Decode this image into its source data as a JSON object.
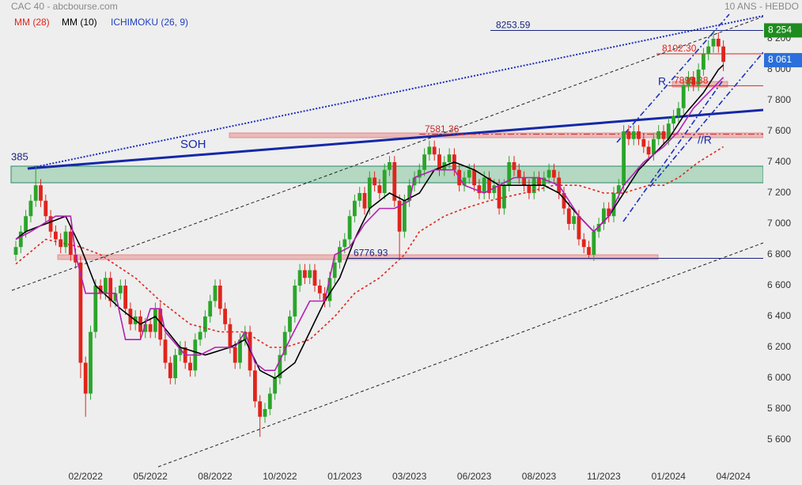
{
  "chart_data": {
    "type": "candlestick",
    "title": "CAC 40 - abcbourse.com",
    "subtitle": "10 ANS - HEBDO",
    "categories": [
      null,
      null,
      null,
      null,
      null,
      null,
      null,
      null,
      null,
      null,
      null,
      null,
      null,
      null,
      "02/2022",
      null,
      null,
      null,
      null,
      null,
      null,
      null,
      null,
      null,
      null,
      null,
      null,
      "05/2022",
      null,
      null,
      null,
      null,
      null,
      null,
      null,
      null,
      null,
      null,
      null,
      null,
      "08/2022",
      null,
      null,
      null,
      null,
      null,
      null,
      null,
      null,
      null,
      null,
      null,
      null,
      "10/2022",
      null,
      null,
      null,
      null,
      null,
      null,
      null,
      null,
      null,
      null,
      null,
      null,
      "01/2023",
      null,
      null,
      null,
      null,
      null,
      null,
      null,
      null,
      null,
      null,
      null,
      null,
      "03/2023",
      null,
      null,
      null,
      null,
      null,
      null,
      null,
      null,
      null,
      null,
      null,
      null,
      "06/2023",
      null,
      null,
      null,
      null,
      null,
      null,
      null,
      null,
      null,
      null,
      null,
      null,
      "08/2023",
      null,
      null,
      null,
      null,
      null,
      null,
      null,
      null,
      null,
      null,
      null,
      null,
      "11/2023",
      null,
      null,
      null,
      null,
      null,
      null,
      null,
      null,
      null,
      null,
      null,
      null,
      "01/2024",
      null,
      null,
      null,
      null,
      null,
      null,
      null,
      null,
      null,
      null,
      null,
      null,
      "04/2024"
    ],
    "open": [
      6800,
      6850,
      6950,
      7050,
      7150,
      7250,
      7150,
      7050,
      6950,
      6900,
      6850,
      6950,
      6800,
      6750,
      6100,
      5900,
      6300,
      6600,
      6550,
      6650,
      6500,
      6550,
      6600,
      6450,
      6350,
      6400,
      6300,
      6350,
      6300,
      6450,
      6250,
      6100,
      6000,
      6150,
      6200,
      6100,
      6050,
      6250,
      6300,
      6400,
      6500,
      6600,
      6450,
      6350,
      6200,
      6100,
      6250,
      6300,
      6050,
      5850,
      5750,
      5800,
      5900,
      6000,
      6150,
      6300,
      6400,
      6600,
      6700,
      6650,
      6700,
      6600,
      6550,
      6500,
      6650,
      6750,
      6850,
      6900,
      7050,
      7150,
      7200,
      7100,
      7300,
      7250,
      7200,
      7350,
      7400,
      7150,
      6950,
      7150,
      7250,
      7300,
      7350,
      7450,
      7500,
      7450,
      7350,
      7400,
      7450,
      7350,
      7250,
      7300,
      7350,
      7250,
      7200,
      7300,
      7200,
      7250,
      7100,
      7250,
      7400,
      7350,
      7300,
      7250,
      7200,
      7300,
      7250,
      7300,
      7350,
      7300,
      7200,
      7100,
      7000,
      7050,
      6900,
      6850,
      6800,
      6950,
      7000,
      7100,
      7050,
      7200,
      7250,
      7600,
      7550,
      7600,
      7550,
      7500,
      7450,
      7550,
      7600,
      7550,
      7650,
      7700,
      7750,
      7900,
      7950,
      7900,
      8000,
      8100,
      8150,
      8200,
      8150,
      null,
      null
    ],
    "high": [
      6890,
      6990,
      7090,
      7190,
      7380,
      7290,
      7190,
      7090,
      6990,
      6940,
      6990,
      6990,
      6840,
      6790,
      6140,
      6340,
      6640,
      6640,
      6690,
      6690,
      6590,
      6640,
      6640,
      6490,
      6440,
      6440,
      6390,
      6390,
      6490,
      6490,
      6290,
      6140,
      6190,
      6240,
      6240,
      6140,
      6290,
      6340,
      6440,
      6540,
      6640,
      6640,
      6490,
      6390,
      6240,
      6290,
      6340,
      6340,
      6090,
      5890,
      5840,
      5940,
      6040,
      6190,
      6340,
      6440,
      6640,
      6740,
      6740,
      6740,
      6740,
      6640,
      6590,
      6690,
      6790,
      6890,
      6940,
      7090,
      7190,
      7240,
      7240,
      7340,
      7340,
      7290,
      7390,
      7440,
      7440,
      7190,
      7190,
      7290,
      7340,
      7390,
      7490,
      7540,
      7540,
      7490,
      7440,
      7490,
      7490,
      7390,
      7340,
      7390,
      7390,
      7290,
      7340,
      7340,
      7290,
      7290,
      7290,
      7440,
      7440,
      7390,
      7340,
      7290,
      7340,
      7340,
      7340,
      7390,
      7390,
      7340,
      7240,
      7140,
      7090,
      7090,
      6940,
      6890,
      6990,
      7040,
      7140,
      7140,
      7240,
      7290,
      7640,
      7640,
      7640,
      7640,
      7590,
      7540,
      7590,
      7640,
      7640,
      7690,
      7740,
      7790,
      7940,
      7990,
      7990,
      8040,
      8140,
      8190,
      8254,
      8240,
      8190,
      null,
      null
    ],
    "low": [
      6760,
      6810,
      6910,
      7010,
      7110,
      7110,
      7010,
      6910,
      6860,
      6810,
      6810,
      6760,
      6710,
      6000,
      5750,
      5860,
      6260,
      6510,
      6510,
      6460,
      6460,
      6510,
      6410,
      6310,
      6310,
      6260,
      6260,
      6260,
      6260,
      6210,
      6060,
      5960,
      5960,
      6110,
      6060,
      6010,
      6010,
      6210,
      6260,
      6360,
      6460,
      6410,
      6310,
      6160,
      6060,
      6060,
      6210,
      6010,
      5810,
      5620,
      5710,
      5760,
      5860,
      5960,
      6110,
      6260,
      6360,
      6560,
      6610,
      6610,
      6560,
      6510,
      6460,
      6460,
      6610,
      6710,
      6810,
      6860,
      7010,
      7110,
      7060,
      7060,
      7210,
      7160,
      7160,
      7310,
      7110,
      6780,
      6910,
      7110,
      7210,
      7260,
      7310,
      7410,
      7410,
      7310,
      7310,
      7360,
      7310,
      7210,
      7210,
      7260,
      7210,
      7160,
      7160,
      7160,
      7160,
      7060,
      7060,
      7210,
      7310,
      7260,
      7210,
      7160,
      7160,
      7210,
      7210,
      7260,
      7260,
      7160,
      7060,
      6960,
      6960,
      6860,
      6810,
      6780,
      6760,
      6910,
      6960,
      7010,
      7010,
      7160,
      7210,
      7510,
      7510,
      7510,
      7460,
      7410,
      7410,
      7510,
      7510,
      7510,
      7610,
      7660,
      7710,
      7860,
      7860,
      7860,
      7960,
      8060,
      8110,
      8110,
      7990,
      null,
      null
    ],
    "close": [
      6850,
      6950,
      7050,
      7150,
      7250,
      7150,
      7050,
      6950,
      6900,
      6850,
      6950,
      6800,
      6750,
      6100,
      5900,
      6300,
      6600,
      6550,
      6650,
      6500,
      6550,
      6600,
      6450,
      6350,
      6400,
      6300,
      6350,
      6300,
      6450,
      6250,
      6100,
      6000,
      6150,
      6200,
      6100,
      6050,
      6250,
      6300,
      6400,
      6500,
      6600,
      6450,
      6350,
      6200,
      6100,
      6250,
      6300,
      6050,
      5850,
      5750,
      5800,
      5900,
      6000,
      6150,
      6300,
      6400,
      6600,
      6700,
      6650,
      6700,
      6600,
      6550,
      6500,
      6650,
      6750,
      6850,
      6900,
      7050,
      7150,
      7200,
      7100,
      7300,
      7250,
      7200,
      7350,
      7400,
      7150,
      6950,
      7150,
      7250,
      7300,
      7350,
      7450,
      7500,
      7450,
      7350,
      7400,
      7450,
      7350,
      7250,
      7300,
      7350,
      7250,
      7200,
      7300,
      7200,
      7250,
      7100,
      7250,
      7400,
      7350,
      7300,
      7250,
      7200,
      7300,
      7250,
      7300,
      7350,
      7300,
      7200,
      7100,
      7000,
      7050,
      6900,
      6850,
      6800,
      6950,
      7000,
      7100,
      7050,
      7200,
      7250,
      7600,
      7550,
      7600,
      7550,
      7500,
      7450,
      7550,
      7600,
      7550,
      7650,
      7700,
      7750,
      7900,
      7950,
      7900,
      8000,
      8100,
      8150,
      8200,
      8150,
      8050,
      null,
      null
    ],
    "up_color": "#2aa52a",
    "down_color": "#e0241c",
    "series": [
      {
        "name": "MM (28)",
        "color": "#e0241c",
        "dashed": true,
        "values": [
          6740,
          6767,
          6793,
          6820,
          6847,
          6873,
          6900,
          6893,
          6886,
          6879,
          6871,
          6864,
          6857,
          6850,
          6838,
          6825,
          6813,
          6800,
          6779,
          6757,
          6736,
          6714,
          6693,
          6671,
          6650,
          6620,
          6590,
          6560,
          6530,
          6500,
          6475,
          6450,
          6425,
          6400,
          6375,
          6350,
          6342,
          6333,
          6325,
          6317,
          6308,
          6300,
          6300,
          6300,
          6300,
          6300,
          6300,
          6280,
          6260,
          6240,
          6220,
          6200,
          6200,
          6200,
          6200,
          6210,
          6220,
          6230,
          6240,
          6250,
          6280,
          6310,
          6340,
          6370,
          6400,
          6438,
          6475,
          6513,
          6550,
          6570,
          6590,
          6610,
          6630,
          6650,
          6680,
          6710,
          6740,
          6770,
          6800,
          6850,
          6900,
          6950,
          6970,
          6990,
          7010,
          7030,
          7050,
          7063,
          7075,
          7088,
          7100,
          7110,
          7120,
          7130,
          7140,
          7150,
          7157,
          7164,
          7171,
          7179,
          7186,
          7193,
          7200,
          7208,
          7217,
          7225,
          7233,
          7242,
          7250,
          7250,
          7250,
          7250,
          7250,
          7250,
          7240,
          7230,
          7220,
          7210,
          7200,
          7200,
          7200,
          7200,
          7200,
          7210,
          7220,
          7230,
          7240,
          7250,
          7250,
          7250,
          7250,
          7267,
          7283,
          7300,
          7325,
          7350,
          7375,
          7400,
          7420,
          7440,
          7460,
          7480,
          7500,
          null,
          null
        ]
      },
      {
        "name": "MM (10)",
        "color": "#000000",
        "dashed": false,
        "values": [
          6900,
          6925,
          6950,
          6963,
          6975,
          6988,
          7000,
          7013,
          7025,
          7038,
          7050,
          6983,
          6917,
          6850,
          6767,
          6683,
          6600,
          6570,
          6540,
          6510,
          6480,
          6450,
          6425,
          6400,
          6375,
          6350,
          6367,
          6383,
          6400,
          6360,
          6320,
          6280,
          6240,
          6200,
          6190,
          6180,
          6170,
          6160,
          6150,
          6160,
          6170,
          6180,
          6190,
          6200,
          6217,
          6233,
          6250,
          6183,
          6117,
          6050,
          6033,
          6017,
          6000,
          6025,
          6050,
          6075,
          6100,
          6167,
          6233,
          6300,
          6367,
          6433,
          6500,
          6550,
          6600,
          6650,
          6733,
          6817,
          6900,
          6967,
          7033,
          7100,
          7125,
          7150,
          7175,
          7200,
          7183,
          7167,
          7150,
          7167,
          7183,
          7200,
          7250,
          7300,
          7350,
          7363,
          7375,
          7388,
          7400,
          7388,
          7375,
          7363,
          7350,
          7330,
          7310,
          7290,
          7270,
          7250,
          7250,
          7250,
          7250,
          7250,
          7250,
          7250,
          7250,
          7250,
          7250,
          7233,
          7217,
          7200,
          7163,
          7125,
          7088,
          7050,
          7017,
          6983,
          6950,
          6983,
          7017,
          7050,
          7100,
          7150,
          7200,
          7250,
          7300,
          7350,
          7383,
          7417,
          7450,
          7483,
          7517,
          7550,
          7600,
          7650,
          7700,
          7738,
          7775,
          7813,
          7850,
          7900,
          7950,
          8000,
          8030,
          null,
          null
        ]
      },
      {
        "name": "ICHIMOKU (26, 9)",
        "color": "#b41fb4",
        "legend_color": "#1f3fbf",
        "dashed": false,
        "values": [
          6900,
          6917,
          6933,
          6950,
          6970,
          6990,
          7010,
          7030,
          7050,
          7050,
          7050,
          7050,
          6800,
          6675,
          6550,
          6550,
          6550,
          6550,
          6550,
          6550,
          6550,
          6400,
          6250,
          6250,
          6250,
          6250,
          6350,
          6450,
          6450,
          6450,
          6300,
          6263,
          6225,
          6188,
          6150,
          6150,
          6150,
          6150,
          6167,
          6183,
          6200,
          6200,
          6200,
          6200,
          6200,
          6250,
          6300,
          6200,
          6100,
          6075,
          6050,
          6050,
          6050,
          6117,
          6183,
          6250,
          6313,
          6375,
          6438,
          6500,
          6500,
          6500,
          6500,
          6650,
          6800,
          6817,
          6833,
          6850,
          6900,
          6950,
          7000,
          7033,
          7067,
          7100,
          7100,
          7100,
          7100,
          7117,
          7133,
          7150,
          7300,
          7313,
          7325,
          7338,
          7350,
          7350,
          7350,
          7350,
          7350,
          7300,
          7250,
          7238,
          7225,
          7213,
          7200,
          7217,
          7233,
          7250,
          7267,
          7283,
          7300,
          7300,
          7300,
          7300,
          7300,
          7300,
          7288,
          7275,
          7263,
          7250,
          7200,
          7150,
          7100,
          7050,
          7017,
          6983,
          6950,
          6983,
          7017,
          7050,
          7117,
          7183,
          7250,
          7288,
          7325,
          7363,
          7400,
          7425,
          7450,
          7475,
          7500,
          7533,
          7567,
          7600,
          7650,
          7700,
          7750,
          7783,
          7817,
          7850,
          7883,
          7917,
          7950,
          null,
          null
        ]
      }
    ],
    "ylim": [
      5400,
      8451
    ],
    "yticks": [
      {
        "value": 5600,
        "label": "5 600"
      },
      {
        "value": 5800,
        "label": "5 800"
      },
      {
        "value": 6000,
        "label": "6 000"
      },
      {
        "value": 6200,
        "label": "6 200"
      },
      {
        "value": 6400,
        "label": "6 400"
      },
      {
        "value": 6600,
        "label": "6 600"
      },
      {
        "value": 6800,
        "label": "6 800"
      },
      {
        "value": 7000,
        "label": "7 000"
      },
      {
        "value": 7200,
        "label": "7 200"
      },
      {
        "value": 7400,
        "label": "7 400"
      },
      {
        "value": 7600,
        "label": "7 600"
      },
      {
        "value": 7800,
        "label": "7 800"
      },
      {
        "value": 8000,
        "label": "8 000"
      },
      {
        "value": 8200,
        "label": "8 200"
      }
    ],
    "levels": [
      {
        "value": 8253.59,
        "color": "#1a237e",
        "dashdot": false
      },
      {
        "value": 8102.3,
        "label": "8102.30",
        "color": "#e0241c",
        "dashdot": false
      },
      {
        "value": 7895.38,
        "color": "#e0241c",
        "dashdot": false
      },
      {
        "value": 7581.36,
        "color": "#c62828",
        "dashdot": true
      },
      {
        "value": 6776.93,
        "color": "#1a237e",
        "dashdot": false
      }
    ],
    "price_tags": [
      {
        "value": 8254,
        "label": "8 254",
        "color": "#1e8c1e"
      },
      {
        "value": 8061,
        "label": "8 061",
        "color": "#2a6fdb"
      }
    ],
    "annotations": [
      "SOH",
      "R",
      "//R",
      "385"
    ]
  }
}
